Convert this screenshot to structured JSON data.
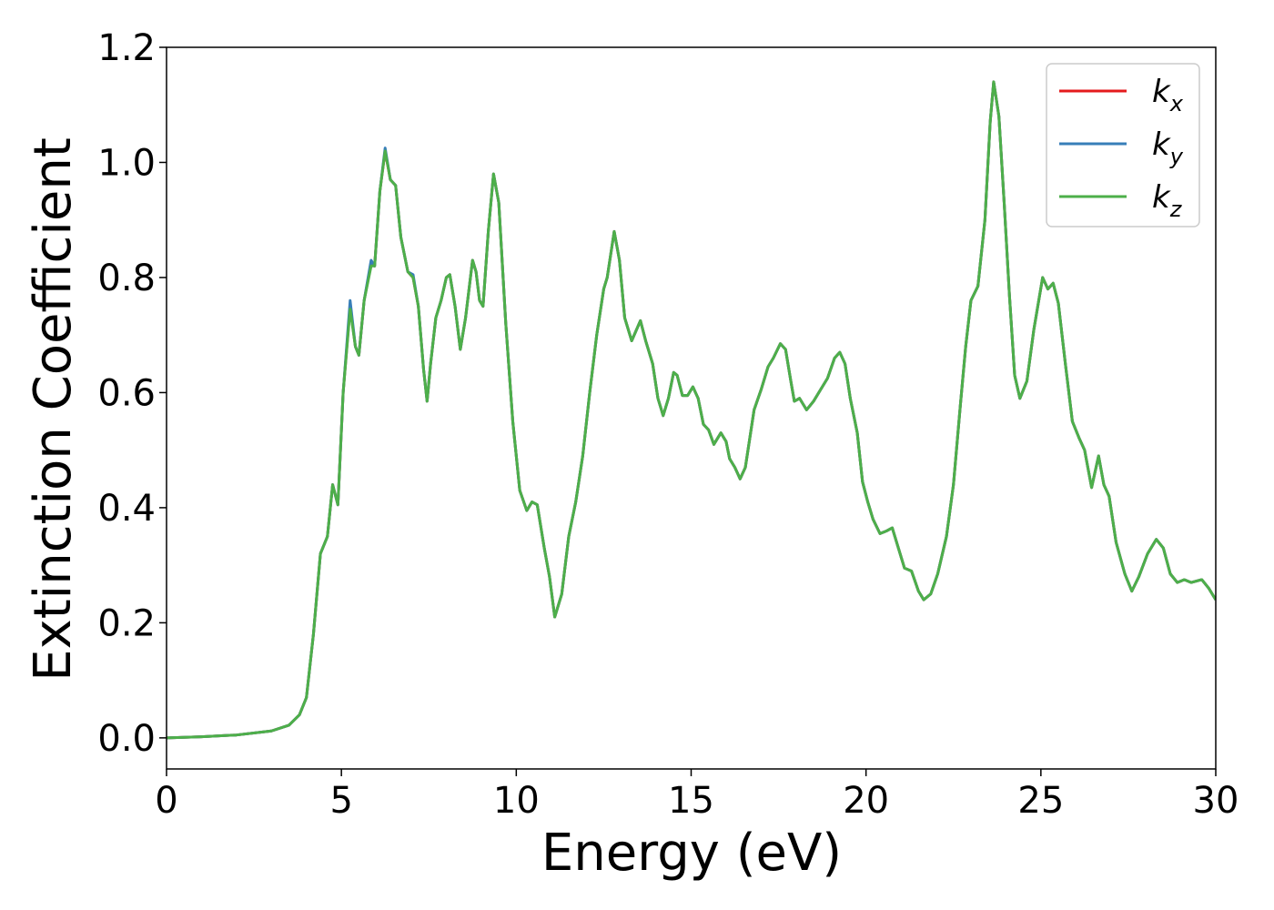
{
  "chart_data": {
    "type": "line",
    "x_label": "Energy (eV)",
    "y_label": "Extinction Coefficient",
    "xlim": [
      0,
      30
    ],
    "ylim": [
      -0.054,
      1.2
    ],
    "xticks": [
      0,
      5,
      10,
      15,
      20,
      25,
      30
    ],
    "yticks": [
      {
        "value": 0,
        "label": "0.0"
      },
      {
        "value": 0.2,
        "label": "0.2"
      },
      {
        "value": 0.4,
        "label": "0.4"
      },
      {
        "value": 0.6,
        "label": "0.6"
      },
      {
        "value": 0.8,
        "label": "0.8"
      },
      {
        "value": 1,
        "label": "1.0"
      },
      {
        "value": 1.2,
        "label": "1.2"
      }
    ],
    "legend": "upper right",
    "x": [
      0,
      1,
      2,
      3,
      3.5,
      3.8,
      4.0,
      4.2,
      4.4,
      4.6,
      4.75,
      4.9,
      5.05,
      5.25,
      5.4,
      5.5,
      5.65,
      5.85,
      5.95,
      6.1,
      6.25,
      6.4,
      6.55,
      6.7,
      6.9,
      7.05,
      7.2,
      7.35,
      7.45,
      7.55,
      7.7,
      7.85,
      8.0,
      8.1,
      8.25,
      8.4,
      8.55,
      8.75,
      8.85,
      8.95,
      9.05,
      9.2,
      9.35,
      9.5,
      9.7,
      9.9,
      10.1,
      10.3,
      10.45,
      10.6,
      10.8,
      10.95,
      11.1,
      11.3,
      11.5,
      11.7,
      11.9,
      12.1,
      12.3,
      12.5,
      12.6,
      12.8,
      12.95,
      13.1,
      13.3,
      13.55,
      13.7,
      13.9,
      14.05,
      14.2,
      14.35,
      14.5,
      14.6,
      14.75,
      14.9,
      15.05,
      15.2,
      15.35,
      15.5,
      15.65,
      15.85,
      16.0,
      16.1,
      16.25,
      16.4,
      16.55,
      16.8,
      17.0,
      17.2,
      17.35,
      17.55,
      17.7,
      17.85,
      17.95,
      18.1,
      18.3,
      18.5,
      18.7,
      18.9,
      19.1,
      19.25,
      19.4,
      19.55,
      19.75,
      19.9,
      20.05,
      20.2,
      20.4,
      20.6,
      20.75,
      20.9,
      21.1,
      21.3,
      21.5,
      21.65,
      21.85,
      22.05,
      22.3,
      22.5,
      22.7,
      22.85,
      23.0,
      23.2,
      23.4,
      23.55,
      23.65,
      23.8,
      23.95,
      24.1,
      24.25,
      24.4,
      24.6,
      24.8,
      25.05,
      25.2,
      25.35,
      25.5,
      25.7,
      25.9,
      26.1,
      26.25,
      26.45,
      26.65,
      26.8,
      26.95,
      27.15,
      27.4,
      27.6,
      27.8,
      28.05,
      28.3,
      28.5,
      28.7,
      28.9,
      29.1,
      29.3,
      29.6,
      29.8,
      30.0
    ],
    "series": [
      {
        "name": "kx",
        "color": "#e41a1c",
        "values": [
          0,
          0.002,
          0.005,
          0.012,
          0.022,
          0.04,
          0.07,
          0.18,
          0.32,
          0.35,
          0.44,
          0.405,
          0.6,
          0.75,
          0.68,
          0.665,
          0.76,
          0.825,
          0.82,
          0.95,
          1.02,
          0.97,
          0.96,
          0.87,
          0.81,
          0.8,
          0.75,
          0.64,
          0.585,
          0.65,
          0.73,
          0.76,
          0.8,
          0.805,
          0.75,
          0.675,
          0.73,
          0.83,
          0.81,
          0.76,
          0.75,
          0.88,
          0.98,
          0.93,
          0.72,
          0.55,
          0.43,
          0.395,
          0.41,
          0.405,
          0.33,
          0.28,
          0.21,
          0.25,
          0.35,
          0.41,
          0.49,
          0.6,
          0.7,
          0.78,
          0.8,
          0.88,
          0.83,
          0.73,
          0.69,
          0.725,
          0.69,
          0.65,
          0.59,
          0.56,
          0.59,
          0.635,
          0.63,
          0.595,
          0.595,
          0.61,
          0.59,
          0.545,
          0.535,
          0.51,
          0.53,
          0.515,
          0.485,
          0.47,
          0.45,
          0.47,
          0.57,
          0.605,
          0.645,
          0.66,
          0.685,
          0.675,
          0.62,
          0.585,
          0.59,
          0.57,
          0.585,
          0.605,
          0.625,
          0.66,
          0.67,
          0.65,
          0.59,
          0.53,
          0.445,
          0.41,
          0.38,
          0.355,
          0.36,
          0.365,
          0.335,
          0.295,
          0.29,
          0.255,
          0.24,
          0.25,
          0.285,
          0.35,
          0.44,
          0.58,
          0.68,
          0.76,
          0.785,
          0.9,
          1.07,
          1.14,
          1.08,
          0.93,
          0.77,
          0.63,
          0.59,
          0.62,
          0.71,
          0.8,
          0.78,
          0.79,
          0.755,
          0.65,
          0.55,
          0.52,
          0.5,
          0.435,
          0.49,
          0.44,
          0.42,
          0.34,
          0.285,
          0.255,
          0.28,
          0.32,
          0.345,
          0.33,
          0.285,
          0.27,
          0.275,
          0.27,
          0.275,
          0.26,
          0.24
        ]
      },
      {
        "name": "ky",
        "color": "#377eb8",
        "values": [
          0,
          0.002,
          0.005,
          0.012,
          0.022,
          0.04,
          0.07,
          0.18,
          0.32,
          0.35,
          0.44,
          0.405,
          0.6,
          0.76,
          0.68,
          0.665,
          0.76,
          0.83,
          0.82,
          0.95,
          1.025,
          0.97,
          0.96,
          0.87,
          0.81,
          0.805,
          0.75,
          0.64,
          0.585,
          0.65,
          0.73,
          0.76,
          0.8,
          0.805,
          0.75,
          0.675,
          0.73,
          0.83,
          0.81,
          0.76,
          0.75,
          0.88,
          0.98,
          0.93,
          0.72,
          0.55,
          0.43,
          0.395,
          0.41,
          0.405,
          0.33,
          0.28,
          0.21,
          0.25,
          0.35,
          0.41,
          0.49,
          0.6,
          0.7,
          0.78,
          0.8,
          0.88,
          0.83,
          0.73,
          0.69,
          0.725,
          0.69,
          0.65,
          0.59,
          0.56,
          0.59,
          0.635,
          0.63,
          0.595,
          0.595,
          0.61,
          0.59,
          0.545,
          0.535,
          0.51,
          0.53,
          0.515,
          0.485,
          0.47,
          0.45,
          0.47,
          0.57,
          0.605,
          0.645,
          0.66,
          0.685,
          0.675,
          0.62,
          0.585,
          0.59,
          0.57,
          0.585,
          0.605,
          0.625,
          0.66,
          0.67,
          0.65,
          0.59,
          0.53,
          0.445,
          0.41,
          0.38,
          0.355,
          0.36,
          0.365,
          0.335,
          0.295,
          0.29,
          0.255,
          0.24,
          0.25,
          0.285,
          0.35,
          0.44,
          0.58,
          0.68,
          0.76,
          0.785,
          0.9,
          1.07,
          1.14,
          1.08,
          0.93,
          0.77,
          0.63,
          0.59,
          0.62,
          0.71,
          0.8,
          0.78,
          0.79,
          0.755,
          0.65,
          0.55,
          0.52,
          0.5,
          0.435,
          0.49,
          0.44,
          0.42,
          0.34,
          0.285,
          0.255,
          0.28,
          0.32,
          0.345,
          0.33,
          0.285,
          0.27,
          0.275,
          0.27,
          0.275,
          0.26,
          0.24
        ]
      },
      {
        "name": "kz",
        "color": "#4daf4a",
        "values": [
          0,
          0.002,
          0.005,
          0.012,
          0.022,
          0.04,
          0.07,
          0.18,
          0.32,
          0.35,
          0.44,
          0.405,
          0.6,
          0.745,
          0.68,
          0.665,
          0.76,
          0.82,
          0.82,
          0.95,
          1.02,
          0.97,
          0.96,
          0.87,
          0.81,
          0.8,
          0.75,
          0.64,
          0.585,
          0.65,
          0.73,
          0.76,
          0.8,
          0.805,
          0.75,
          0.675,
          0.73,
          0.83,
          0.81,
          0.76,
          0.75,
          0.88,
          0.98,
          0.93,
          0.72,
          0.55,
          0.43,
          0.395,
          0.41,
          0.405,
          0.33,
          0.28,
          0.21,
          0.25,
          0.35,
          0.41,
          0.49,
          0.6,
          0.7,
          0.78,
          0.8,
          0.88,
          0.83,
          0.73,
          0.69,
          0.725,
          0.69,
          0.65,
          0.59,
          0.56,
          0.59,
          0.635,
          0.63,
          0.595,
          0.595,
          0.61,
          0.59,
          0.545,
          0.535,
          0.51,
          0.53,
          0.515,
          0.485,
          0.47,
          0.45,
          0.47,
          0.57,
          0.605,
          0.645,
          0.66,
          0.685,
          0.675,
          0.62,
          0.585,
          0.59,
          0.57,
          0.585,
          0.605,
          0.625,
          0.66,
          0.67,
          0.65,
          0.59,
          0.53,
          0.445,
          0.41,
          0.38,
          0.355,
          0.36,
          0.365,
          0.335,
          0.295,
          0.29,
          0.255,
          0.24,
          0.25,
          0.285,
          0.35,
          0.44,
          0.58,
          0.68,
          0.76,
          0.785,
          0.9,
          1.07,
          1.14,
          1.08,
          0.93,
          0.77,
          0.63,
          0.59,
          0.62,
          0.71,
          0.8,
          0.78,
          0.79,
          0.755,
          0.65,
          0.55,
          0.52,
          0.5,
          0.435,
          0.49,
          0.44,
          0.42,
          0.34,
          0.285,
          0.255,
          0.28,
          0.32,
          0.345,
          0.33,
          0.285,
          0.27,
          0.275,
          0.27,
          0.275,
          0.26,
          0.24
        ]
      }
    ]
  }
}
